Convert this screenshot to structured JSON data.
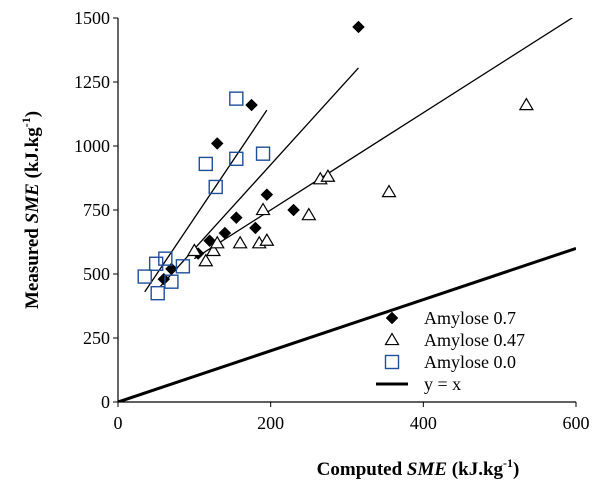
{
  "chart_data": {
    "type": "scatter",
    "xlabel": {
      "prefix": "Computed ",
      "italic": "SME",
      "suffix": " (kJ.kg",
      "sup": "-1",
      "close": ")"
    },
    "ylabel": {
      "prefix": "Measured ",
      "italic": "SME",
      "suffix": " (kJ.kg",
      "sup": "-1",
      "close": ")"
    },
    "xlim": [
      0,
      600
    ],
    "ylim": [
      0,
      1500
    ],
    "xticks": [
      "0",
      "200",
      "400",
      "600"
    ],
    "yticks": [
      "0",
      "250",
      "500",
      "750",
      "1000",
      "1250",
      "1500"
    ],
    "grid": false,
    "legend_position": "bottom-right",
    "series": [
      {
        "name": "Amylose 0.7",
        "marker": "filled-diamond",
        "color": "#000000",
        "points": [
          [
            60,
            480
          ],
          [
            70,
            520
          ],
          [
            105,
            580
          ],
          [
            120,
            630
          ],
          [
            130,
            1010
          ],
          [
            140,
            660
          ],
          [
            155,
            720
          ],
          [
            175,
            1160
          ],
          [
            180,
            680
          ],
          [
            195,
            810
          ],
          [
            230,
            750
          ],
          [
            315,
            1465
          ]
        ]
      },
      {
        "name": "Amylose 0.47",
        "marker": "open-triangle",
        "color": "#000000",
        "points": [
          [
            100,
            590
          ],
          [
            115,
            550
          ],
          [
            125,
            590
          ],
          [
            130,
            620
          ],
          [
            160,
            620
          ],
          [
            185,
            620
          ],
          [
            190,
            750
          ],
          [
            195,
            630
          ],
          [
            250,
            730
          ],
          [
            265,
            870
          ],
          [
            275,
            880
          ],
          [
            355,
            820
          ],
          [
            535,
            1160
          ]
        ]
      },
      {
        "name": "Amylose 0.0",
        "marker": "open-square",
        "color": "#1f4e9b",
        "points": [
          [
            35,
            490
          ],
          [
            50,
            540
          ],
          [
            52,
            425
          ],
          [
            62,
            560
          ],
          [
            70,
            470
          ],
          [
            85,
            530
          ],
          [
            115,
            930
          ],
          [
            128,
            840
          ],
          [
            155,
            1185
          ],
          [
            155,
            950
          ],
          [
            190,
            970
          ]
        ]
      },
      {
        "name": "y = x",
        "marker": "line",
        "color": "#000000",
        "points": [
          [
            0,
            0
          ],
          [
            600,
            600
          ]
        ]
      }
    ],
    "fit_lines": [
      {
        "series": "Amylose 0.0",
        "points": [
          [
            35,
            430
          ],
          [
            195,
            1140
          ]
        ]
      },
      {
        "series": "Amylose 0.7",
        "points": [
          [
            55,
            450
          ],
          [
            315,
            1305
          ]
        ]
      },
      {
        "series": "Amylose 0.47",
        "points": [
          [
            100,
            560
          ],
          [
            600,
            1510
          ]
        ]
      }
    ]
  }
}
